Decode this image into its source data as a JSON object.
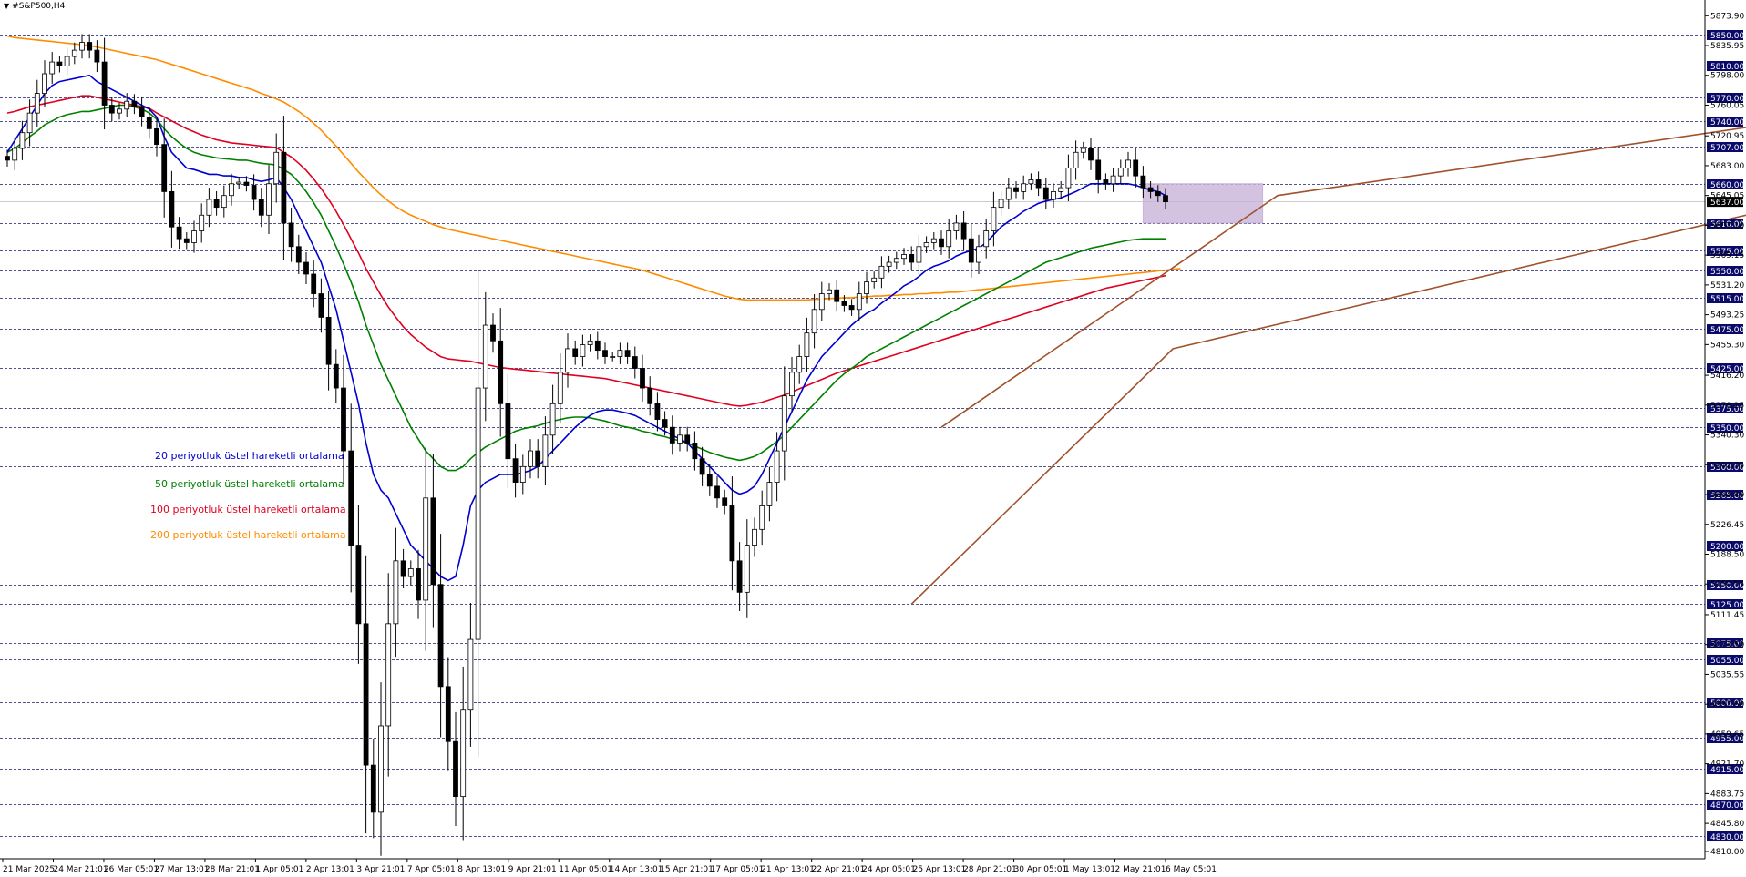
{
  "header": {
    "symbol": "#S&P500,H4",
    "menu_icon": "triangle-down-icon"
  },
  "colors": {
    "bull_candle": "#ffffff",
    "bear_candle": "#000000",
    "ema20": "#0000d0",
    "ema50": "#008000",
    "ema100": "#e00020",
    "ema200": "#ff8c00",
    "trendline": "#a0522d",
    "box_fill": "#c8b4d8",
    "price_label_bg": "#0a0a6a",
    "grid": "#1a1a6a"
  },
  "legend": [
    {
      "text": "20 periyotluk üstel hareketli ortalama",
      "color": "#0000d0"
    },
    {
      "text": "50 periyotluk üstel hareketli ortalama",
      "color": "#008000"
    },
    {
      "text": "100 periyotluk üstel hareketli ortalama",
      "color": "#e00020"
    },
    {
      "text": "200 periyotluk üstel hareketli ortalama",
      "color": "#ff8c00"
    }
  ],
  "chart_data": {
    "type": "candlestick",
    "symbol": "#S&P500",
    "timeframe": "H4",
    "ylim": [
      4810,
      5880
    ],
    "current_price": 5637,
    "horizontal_levels": [
      5850,
      5810,
      5770,
      5740,
      5707,
      5660,
      5610,
      5575,
      5550,
      5515,
      5475,
      5425,
      5375,
      5350,
      5300,
      5265,
      5200,
      5150,
      5125,
      5075,
      5055,
      5000,
      4955,
      4915,
      4870,
      4830
    ],
    "plain_ticks": [
      5873.9,
      5835.95,
      5798.0,
      5760.05,
      5720.95,
      5683.0,
      5645.05,
      5607.1,
      5569.15,
      5531.2,
      5493.25,
      5455.3,
      5416.2,
      5378.25,
      5340.3,
      5302.35,
      5264.4,
      5226.45,
      5188.5,
      5150.55,
      5111.45,
      5073.5,
      5035.55,
      4997.6,
      4959.65,
      4921.7,
      4883.75,
      4845.8,
      4810.0
    ],
    "x_labels": [
      "21 Mar 2025",
      "24 Mar 21:01",
      "26 Mar 05:01",
      "27 Mar 13:01",
      "28 Mar 21:01",
      "1 Apr 05:01",
      "2 Apr 13:01",
      "3 Apr 21:01",
      "7 Apr 05:01",
      "8 Apr 13:01",
      "9 Apr 21:01",
      "11 Apr 05:01",
      "14 Apr 13:01",
      "15 Apr 21:01",
      "17 Apr 05:01",
      "21 Apr 13:01",
      "22 Apr 21:01",
      "24 Apr 05:01",
      "25 Apr 13:01",
      "28 Apr 21:01",
      "30 Apr 05:01",
      "1 May 13:01",
      "2 May 21:01",
      "6 May 05:01"
    ],
    "closes": [
      5690,
      5705,
      5725,
      5750,
      5775,
      5800,
      5815,
      5810,
      5822,
      5830,
      5840,
      5830,
      5815,
      5760,
      5750,
      5755,
      5765,
      5758,
      5745,
      5730,
      5710,
      5650,
      5605,
      5590,
      5585,
      5600,
      5620,
      5640,
      5630,
      5645,
      5660,
      5662,
      5658,
      5640,
      5620,
      5660,
      5700,
      5610,
      5580,
      5560,
      5545,
      5520,
      5490,
      5430,
      5400,
      5320,
      5200,
      5100,
      4920,
      4860,
      4970,
      5100,
      5180,
      5160,
      5170,
      5130,
      5260,
      5150,
      5020,
      4950,
      4880,
      4990,
      5080,
      5400,
      5480,
      5460,
      5380,
      5310,
      5280,
      5300,
      5320,
      5300,
      5340,
      5380,
      5420,
      5450,
      5440,
      5455,
      5460,
      5448,
      5440,
      5440,
      5448,
      5440,
      5425,
      5400,
      5380,
      5360,
      5350,
      5330,
      5340,
      5330,
      5310,
      5290,
      5275,
      5260,
      5250,
      5180,
      5140,
      5200,
      5220,
      5250,
      5280,
      5320,
      5390,
      5420,
      5440,
      5470,
      5500,
      5520,
      5525,
      5510,
      5505,
      5500,
      5520,
      5535,
      5540,
      5555,
      5560,
      5565,
      5570,
      5560,
      5580,
      5585,
      5590,
      5580,
      5600,
      5610,
      5590,
      5560,
      5580,
      5600,
      5630,
      5640,
      5655,
      5650,
      5660,
      5665,
      5655,
      5640,
      5650,
      5655,
      5680,
      5700,
      5705,
      5690,
      5665,
      5660,
      5670,
      5680,
      5690,
      5670,
      5655,
      5650,
      5645,
      5637
    ],
    "ema20": [
      5700,
      5715,
      5730,
      5745,
      5760,
      5775,
      5785,
      5790,
      5792,
      5794,
      5796,
      5798,
      5790,
      5785,
      5780,
      5775,
      5770,
      5765,
      5760,
      5755,
      5745,
      5720,
      5700,
      5690,
      5680,
      5678,
      5675,
      5672,
      5672,
      5670,
      5670,
      5668,
      5668,
      5665,
      5663,
      5665,
      5668,
      5655,
      5640,
      5620,
      5600,
      5580,
      5560,
      5530,
      5500,
      5460,
      5420,
      5380,
      5330,
      5290,
      5270,
      5260,
      5240,
      5220,
      5200,
      5190,
      5180,
      5170,
      5160,
      5155,
      5160,
      5200,
      5250,
      5270,
      5280,
      5285,
      5290,
      5290,
      5290,
      5292,
      5295,
      5300,
      5310,
      5320,
      5330,
      5340,
      5350,
      5358,
      5365,
      5370,
      5372,
      5372,
      5370,
      5368,
      5365,
      5360,
      5355,
      5350,
      5345,
      5340,
      5335,
      5330,
      5320,
      5310,
      5300,
      5290,
      5280,
      5270,
      5265,
      5268,
      5275,
      5290,
      5310,
      5330,
      5350,
      5370,
      5390,
      5410,
      5425,
      5440,
      5450,
      5460,
      5470,
      5480,
      5488,
      5495,
      5500,
      5508,
      5515,
      5522,
      5530,
      5535,
      5542,
      5550,
      5555,
      5558,
      5562,
      5568,
      5572,
      5575,
      5578,
      5585,
      5595,
      5605,
      5612,
      5618,
      5625,
      5630,
      5635,
      5638,
      5640,
      5642,
      5646,
      5650,
      5655,
      5660,
      5660,
      5660,
      5660,
      5660,
      5660,
      5658,
      5655,
      5652,
      5650,
      5645
    ],
    "ema50": [
      5700,
      5705,
      5712,
      5720,
      5727,
      5735,
      5740,
      5745,
      5748,
      5750,
      5752,
      5752,
      5754,
      5756,
      5758,
      5760,
      5760,
      5758,
      5755,
      5750,
      5742,
      5730,
      5720,
      5712,
      5705,
      5700,
      5697,
      5695,
      5693,
      5692,
      5691,
      5690,
      5690,
      5688,
      5686,
      5685,
      5684,
      5678,
      5672,
      5662,
      5650,
      5636,
      5620,
      5600,
      5580,
      5558,
      5535,
      5510,
      5480,
      5455,
      5430,
      5410,
      5390,
      5370,
      5350,
      5335,
      5320,
      5310,
      5300,
      5295,
      5295,
      5300,
      5310,
      5318,
      5325,
      5330,
      5335,
      5340,
      5345,
      5348,
      5350,
      5352,
      5355,
      5358,
      5360,
      5362,
      5363,
      5363,
      5362,
      5360,
      5358,
      5355,
      5352,
      5350,
      5348,
      5345,
      5343,
      5340,
      5338,
      5335,
      5333,
      5330,
      5326,
      5322,
      5318,
      5315,
      5312,
      5310,
      5308,
      5310,
      5313,
      5318,
      5325,
      5332,
      5340,
      5350,
      5360,
      5370,
      5380,
      5390,
      5400,
      5410,
      5418,
      5425,
      5432,
      5440,
      5445,
      5450,
      5455,
      5460,
      5465,
      5470,
      5475,
      5480,
      5485,
      5490,
      5495,
      5500,
      5505,
      5510,
      5515,
      5520,
      5525,
      5530,
      5535,
      5540,
      5545,
      5550,
      5555,
      5560,
      5563,
      5566,
      5569,
      5572,
      5575,
      5578,
      5580,
      5582,
      5584,
      5586,
      5588,
      5589,
      5590,
      5590,
      5590,
      5590
    ],
    "ema100": [
      5750,
      5752,
      5755,
      5758,
      5760,
      5762,
      5764,
      5766,
      5768,
      5770,
      5772,
      5772,
      5770,
      5768,
      5766,
      5764,
      5762,
      5760,
      5758,
      5756,
      5750,
      5745,
      5740,
      5735,
      5730,
      5726,
      5722,
      5719,
      5716,
      5714,
      5712,
      5711,
      5710,
      5709,
      5708,
      5707,
      5706,
      5700,
      5694,
      5686,
      5677,
      5666,
      5654,
      5640,
      5625,
      5608,
      5590,
      5572,
      5552,
      5535,
      5518,
      5503,
      5490,
      5478,
      5468,
      5460,
      5452,
      5446,
      5440,
      5437,
      5436,
      5435,
      5434,
      5432,
      5430,
      5428,
      5426,
      5425,
      5424,
      5423,
      5422,
      5421,
      5420,
      5419,
      5418,
      5417,
      5416,
      5415,
      5414,
      5413,
      5412,
      5410,
      5408,
      5406,
      5404,
      5402,
      5400,
      5398,
      5396,
      5394,
      5392,
      5390,
      5388,
      5386,
      5384,
      5382,
      5380,
      5378,
      5377,
      5378,
      5380,
      5382,
      5385,
      5388,
      5391,
      5395,
      5399,
      5403,
      5407,
      5411,
      5415,
      5419,
      5422,
      5425,
      5428,
      5431,
      5434,
      5437,
      5440,
      5443,
      5446,
      5449,
      5452,
      5455,
      5458,
      5461,
      5464,
      5467,
      5470,
      5473,
      5476,
      5479,
      5482,
      5485,
      5488,
      5491,
      5494,
      5497,
      5500,
      5503,
      5506,
      5509,
      5512,
      5515,
      5518,
      5521,
      5524,
      5527,
      5529,
      5531,
      5533,
      5535,
      5537,
      5539,
      5541,
      5543
    ],
    "ema200": [
      5848,
      5846,
      5845,
      5844,
      5843,
      5842,
      5841,
      5840,
      5839,
      5838,
      5837,
      5836,
      5834,
      5832,
      5830,
      5828,
      5826,
      5824,
      5822,
      5820,
      5818,
      5815,
      5812,
      5809,
      5806,
      5803,
      5800,
      5797,
      5794,
      5791,
      5788,
      5785,
      5782,
      5779,
      5775,
      5772,
      5768,
      5764,
      5758,
      5752,
      5745,
      5737,
      5728,
      5718,
      5708,
      5697,
      5686,
      5675,
      5665,
      5655,
      5646,
      5638,
      5631,
      5625,
      5620,
      5616,
      5612,
      5608,
      5605,
      5602,
      5600,
      5598,
      5596,
      5594,
      5592,
      5590,
      5588,
      5586,
      5584,
      5582,
      5580,
      5578,
      5576,
      5574,
      5572,
      5570,
      5568,
      5566,
      5564,
      5562,
      5560,
      5558,
      5556,
      5554,
      5552,
      5550,
      5547,
      5544,
      5541,
      5538,
      5535,
      5532,
      5529,
      5526,
      5523,
      5520,
      5517,
      5515,
      5513,
      5512,
      5512,
      5512,
      5512,
      5512,
      5512,
      5512,
      5512,
      5512,
      5513,
      5513,
      5514,
      5514,
      5515,
      5515,
      5516,
      5516,
      5517,
      5517,
      5518,
      5518,
      5519,
      5519,
      5520,
      5520,
      5521,
      5521,
      5522,
      5522,
      5523,
      5524,
      5525,
      5526,
      5527,
      5528,
      5529,
      5530,
      5531,
      5532,
      5533,
      5534,
      5535,
      5536,
      5537,
      5538,
      5539,
      5540,
      5541,
      5542,
      5543,
      5544,
      5545,
      5546,
      5547,
      5548,
      5549,
      5550,
      5551,
      5552
    ],
    "trendlines": [
      {
        "name": "channel-upper",
        "points": [
          [
            125,
            5350
          ],
          [
            170,
            5645
          ],
          [
            340,
            5880
          ]
        ]
      },
      {
        "name": "channel-lower",
        "points": [
          [
            121,
            5125
          ],
          [
            156,
            5450
          ],
          [
            350,
            5880
          ]
        ]
      }
    ],
    "consolidation_box": {
      "x0": 152,
      "x1": 168,
      "y0": 5610,
      "y1": 5660
    }
  }
}
